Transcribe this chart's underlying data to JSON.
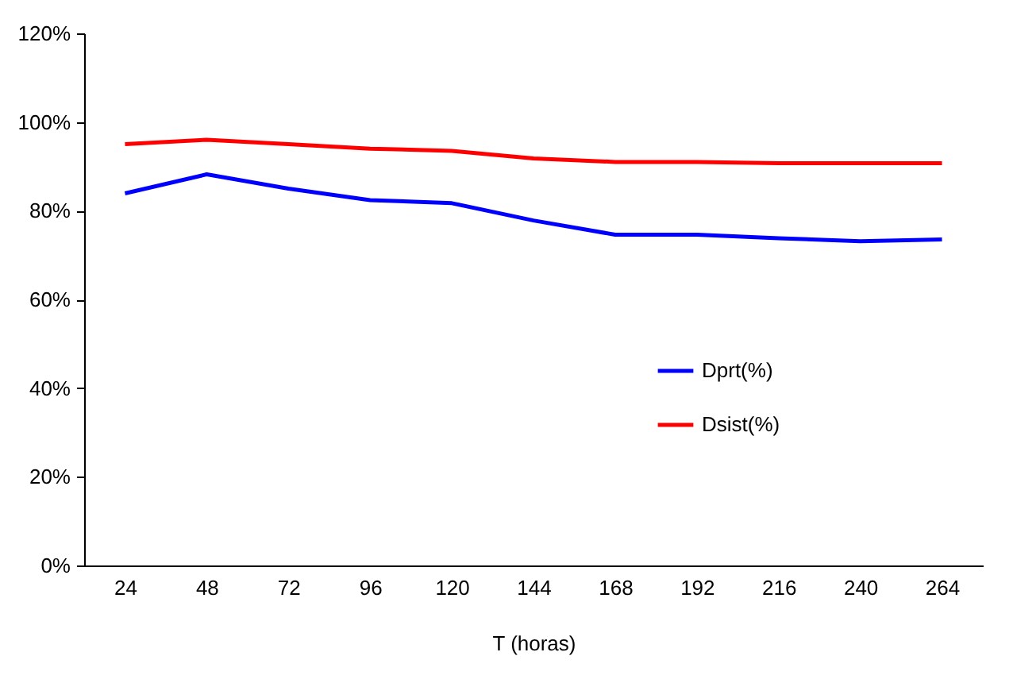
{
  "chart_data": {
    "type": "line",
    "xlabel": "T (horas)",
    "categories": [
      "24",
      "48",
      "72",
      "96",
      "120",
      "144",
      "168",
      "192",
      "216",
      "240",
      "264"
    ],
    "series": [
      {
        "name": "Dprt(%)",
        "color": "#0000ff",
        "values": [
          83.9,
          88.2,
          85,
          82.4,
          81.7,
          77.8,
          74.6,
          74.6,
          73.8,
          73.1,
          73.5
        ]
      },
      {
        "name": "Dsist(%)",
        "color": "#ff0000",
        "values": [
          95,
          96,
          95,
          94,
          93.5,
          91.8,
          91,
          91,
          90.7,
          90.7,
          90.7
        ]
      }
    ],
    "ylim": [
      0,
      120
    ],
    "yticks": [
      {
        "value": 0,
        "label": "0%"
      },
      {
        "value": 20,
        "label": "20%"
      },
      {
        "value": 40,
        "label": "40%"
      },
      {
        "value": 60,
        "label": "60%"
      },
      {
        "value": 80,
        "label": "80%"
      },
      {
        "value": 100,
        "label": "100%"
      },
      {
        "value": 120,
        "label": "120%"
      }
    ],
    "grid": false,
    "legend": "right",
    "marker": "none",
    "line_style": "solid"
  }
}
